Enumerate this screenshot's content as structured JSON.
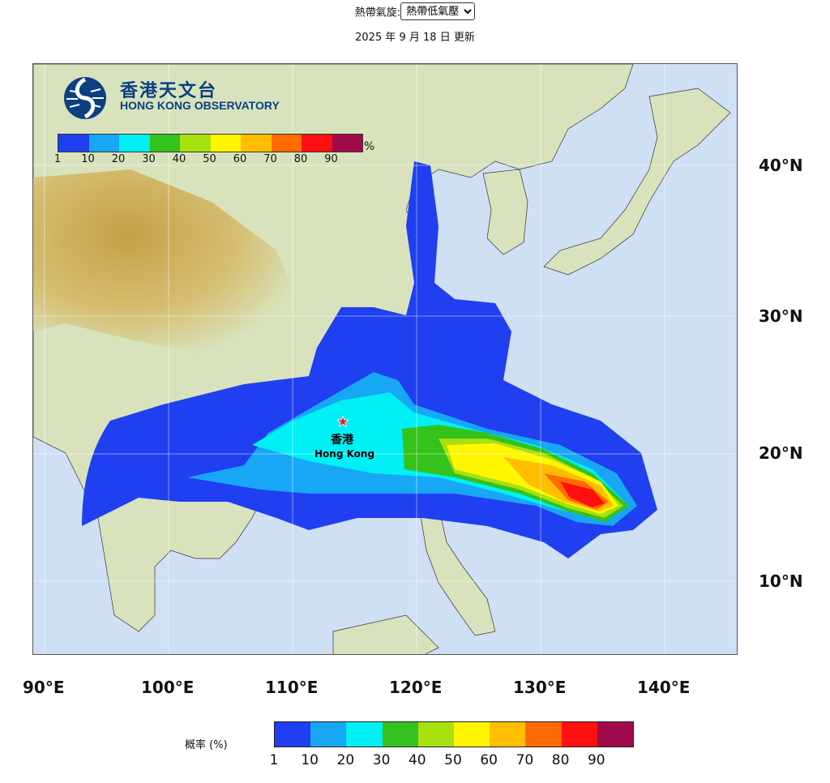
{
  "header": {
    "selector_label": "熱帶氣旋:",
    "selector_value": "熱帶低氣壓",
    "updated_text": "2025 年 9 月 18 日 更新"
  },
  "logo": {
    "name_zh": "香港天文台",
    "name_en": "HONG KONG OBSERVATORY"
  },
  "map": {
    "lat_labels": [
      "40°N",
      "30°N",
      "20°N",
      "10°N"
    ],
    "lon_labels": [
      "90°E",
      "100°E",
      "110°E",
      "120°E",
      "130°E",
      "140°E"
    ],
    "hk_label_zh": "香港",
    "hk_label_en": "Hong Kong"
  },
  "legend": {
    "caption": "概率 (%)",
    "unit": "%",
    "ticks": [
      "1",
      "10",
      "20",
      "30",
      "40",
      "50",
      "60",
      "70",
      "80",
      "90"
    ],
    "colors": [
      "#1f3ff0",
      "#17a7f5",
      "#00f0f5",
      "#34c21c",
      "#a8e010",
      "#fff600",
      "#ffbe00",
      "#ff6b00",
      "#ff1010",
      "#a00a4a"
    ]
  },
  "colors": {
    "sea": "#cfe0f5",
    "land": "#d8e3bd",
    "highland": "#c9a74a"
  }
}
